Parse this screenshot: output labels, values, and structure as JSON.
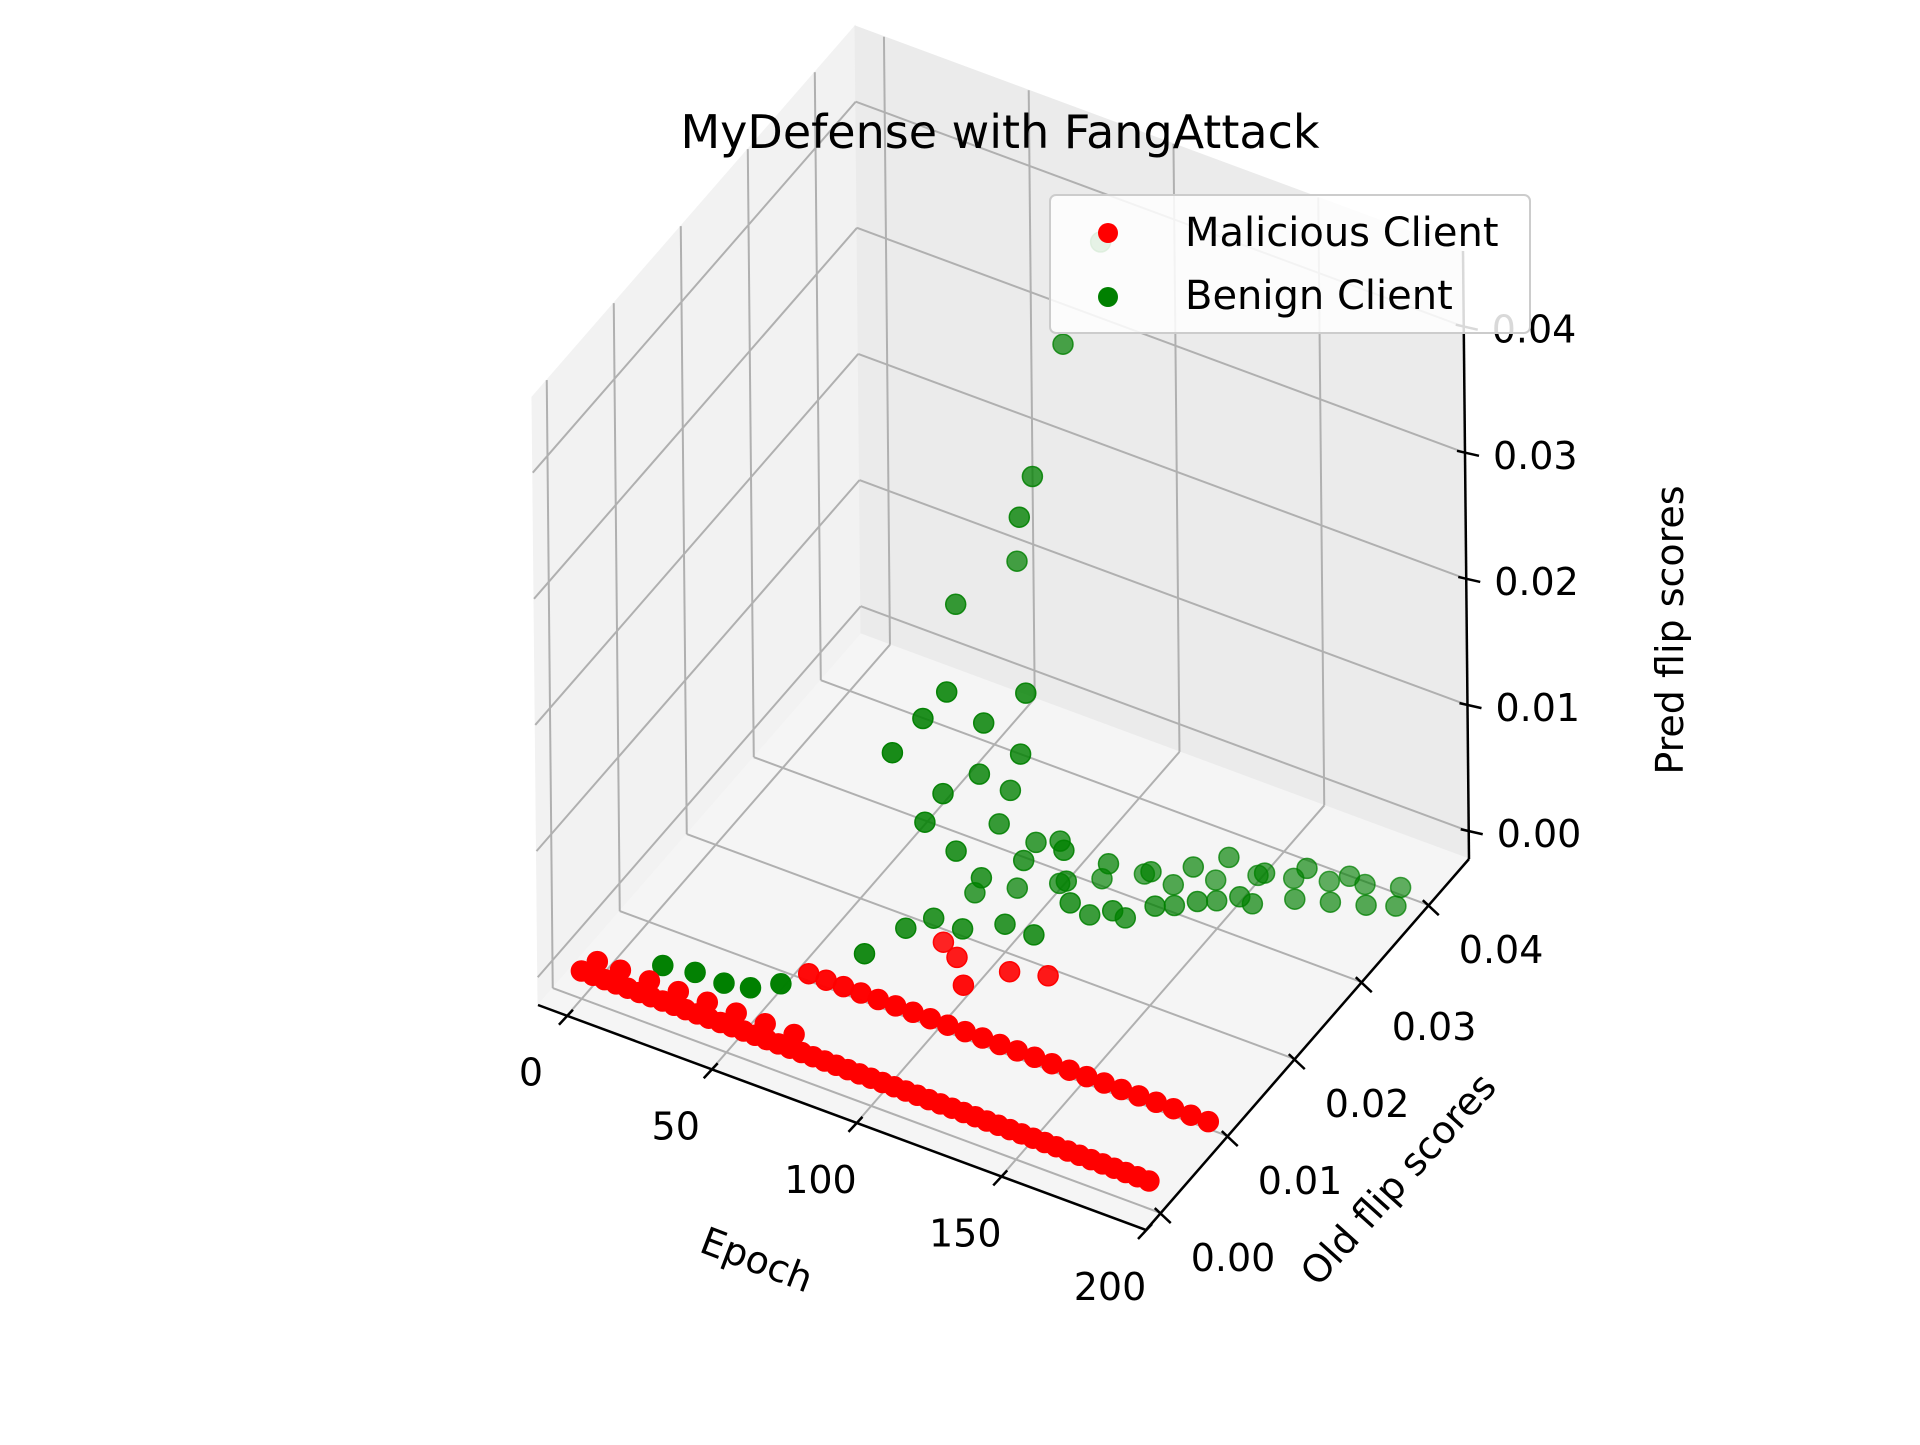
{
  "chart_data": {
    "type": "scatter3d",
    "title": "MyDefense with FangAttack",
    "axes": {
      "x": {
        "label": "Epoch",
        "ticks": [
          "0",
          "50",
          "100",
          "150",
          "200"
        ],
        "tick_values": [
          0,
          50,
          100,
          150,
          200
        ],
        "range": [
          -10,
          200
        ]
      },
      "y": {
        "label": "Old flip scores",
        "ticks": [
          "0.00",
          "0.01",
          "0.02",
          "0.03",
          "0.04"
        ],
        "tick_values": [
          0,
          0.01,
          0.02,
          0.03,
          0.04
        ],
        "range": [
          -0.0022,
          0.046
        ]
      },
      "z": {
        "label": "Pred flip scores",
        "ticks": [
          "0.00",
          "0.01",
          "0.02",
          "0.03",
          "0.04"
        ],
        "tick_values": [
          0,
          0.01,
          0.02,
          0.03,
          0.04
        ],
        "range": [
          -0.0022,
          0.046
        ]
      }
    },
    "grid": true,
    "legend": {
      "placement": "upper right",
      "entries": [
        {
          "label": "Malicious Client",
          "color": "#ff0000"
        },
        {
          "label": "Benign Client",
          "color": "#008000"
        }
      ]
    },
    "series": [
      {
        "name": "Malicious Client",
        "color": "#ff0000",
        "points": [
          [
            0,
            0,
            0
          ],
          [
            4,
            0,
            0
          ],
          [
            8,
            0,
            0
          ],
          [
            12,
            0,
            0
          ],
          [
            16,
            0,
            0
          ],
          [
            20,
            0,
            0
          ],
          [
            24,
            0,
            0
          ],
          [
            28,
            0,
            0
          ],
          [
            32,
            0,
            0
          ],
          [
            36,
            0,
            0
          ],
          [
            40,
            0,
            0
          ],
          [
            44,
            0,
            0
          ],
          [
            48,
            0,
            0
          ],
          [
            52,
            0,
            0
          ],
          [
            56,
            0,
            0
          ],
          [
            60,
            0,
            0
          ],
          [
            64,
            0,
            0
          ],
          [
            68,
            0,
            0
          ],
          [
            72,
            0,
            0
          ],
          [
            76,
            0,
            0
          ],
          [
            80,
            0,
            0
          ],
          [
            84,
            0,
            0
          ],
          [
            88,
            0,
            0
          ],
          [
            92,
            0,
            0
          ],
          [
            96,
            0,
            0
          ],
          [
            100,
            0,
            0
          ],
          [
            104,
            0,
            0
          ],
          [
            108,
            0,
            0
          ],
          [
            112,
            0,
            0
          ],
          [
            116,
            0,
            0
          ],
          [
            120,
            0,
            0
          ],
          [
            124,
            0,
            0
          ],
          [
            128,
            0,
            0
          ],
          [
            132,
            0,
            0
          ],
          [
            136,
            0,
            0
          ],
          [
            140,
            0,
            0
          ],
          [
            144,
            0,
            0
          ],
          [
            148,
            0,
            0
          ],
          [
            152,
            0,
            0
          ],
          [
            156,
            0,
            0
          ],
          [
            160,
            0,
            0
          ],
          [
            164,
            0,
            0
          ],
          [
            168,
            0,
            0
          ],
          [
            172,
            0,
            0
          ],
          [
            176,
            0,
            0
          ],
          [
            180,
            0,
            0
          ],
          [
            184,
            0,
            0
          ],
          [
            188,
            0,
            0
          ],
          [
            192,
            0,
            0
          ],
          [
            196,
            0,
            0
          ],
          [
            2,
            0.0015,
            0
          ],
          [
            10,
            0.0015,
            0
          ],
          [
            20,
            0.0015,
            0
          ],
          [
            30,
            0.0015,
            0
          ],
          [
            40,
            0.0015,
            0
          ],
          [
            50,
            0.0015,
            0
          ],
          [
            60,
            0.0015,
            0
          ],
          [
            70,
            0.0015,
            0
          ],
          [
            60,
            0.008,
            0
          ],
          [
            66,
            0.008,
            0
          ],
          [
            72,
            0.008,
            0
          ],
          [
            78,
            0.008,
            0
          ],
          [
            84,
            0.008,
            0
          ],
          [
            90,
            0.008,
            0
          ],
          [
            96,
            0.008,
            0
          ],
          [
            102,
            0.008,
            0
          ],
          [
            108,
            0.008,
            0
          ],
          [
            114,
            0.008,
            0
          ],
          [
            120,
            0.008,
            0
          ],
          [
            126,
            0.008,
            0
          ],
          [
            132,
            0.008,
            0
          ],
          [
            138,
            0.008,
            0
          ],
          [
            144,
            0.008,
            0
          ],
          [
            150,
            0.008,
            0
          ],
          [
            156,
            0.008,
            0
          ],
          [
            162,
            0.008,
            0
          ],
          [
            168,
            0.008,
            0
          ],
          [
            174,
            0.008,
            0
          ],
          [
            180,
            0.008,
            0
          ],
          [
            186,
            0.008,
            0
          ],
          [
            192,
            0.008,
            0
          ],
          [
            198,
            0.008,
            0
          ],
          [
            88,
            0.016,
            0
          ],
          [
            112,
            0.0155,
            0
          ],
          [
            123,
            0.0165,
            0
          ],
          [
            103,
            0.0125,
            0
          ],
          [
            95,
            0.015,
            0
          ]
        ]
      },
      {
        "name": "Benign Client",
        "color": "#008000",
        "points": [
          [
            20,
            0.0035,
            0
          ],
          [
            30,
            0.004,
            0
          ],
          [
            40,
            0.004,
            0
          ],
          [
            48,
            0.0045,
            0
          ],
          [
            55,
            0.006,
            0
          ],
          [
            70,
            0.012,
            0
          ],
          [
            75,
            0.016,
            0
          ],
          [
            80,
            0.018,
            0
          ],
          [
            85,
            0.022,
            0
          ],
          [
            90,
            0.018,
            0
          ],
          [
            95,
            0.024,
            0
          ],
          [
            100,
            0.02,
            0
          ],
          [
            105,
            0.026,
            0
          ],
          [
            110,
            0.02,
            0
          ],
          [
            115,
            0.028,
            0
          ],
          [
            120,
            0.024,
            0
          ],
          [
            125,
            0.03,
            0
          ],
          [
            130,
            0.025,
            0
          ],
          [
            135,
            0.03,
            0
          ],
          [
            140,
            0.028,
            0
          ],
          [
            145,
            0.032,
            0
          ],
          [
            150,
            0.03,
            0
          ],
          [
            155,
            0.034,
            0
          ],
          [
            160,
            0.031,
            0
          ],
          [
            165,
            0.035,
            0
          ],
          [
            170,
            0.033,
            0
          ],
          [
            175,
            0.036,
            0
          ],
          [
            180,
            0.034,
            0
          ],
          [
            185,
            0.037,
            0
          ],
          [
            190,
            0.035,
            0
          ],
          [
            195,
            0.038,
            0
          ],
          [
            198,
            0.036,
            0
          ],
          [
            92,
            0.02,
            0.003
          ],
          [
            102,
            0.022,
            0.004
          ],
          [
            112,
            0.024,
            0.002
          ],
          [
            122,
            0.026,
            0.003
          ],
          [
            132,
            0.028,
            0.002
          ],
          [
            142,
            0.03,
            0.002
          ],
          [
            152,
            0.031,
            0.003
          ],
          [
            162,
            0.032,
            0.002
          ],
          [
            172,
            0.034,
            0.002
          ],
          [
            182,
            0.036,
            0.001
          ],
          [
            88,
            0.018,
            0.006
          ],
          [
            96,
            0.021,
            0.007
          ],
          [
            104,
            0.023,
            0.005
          ],
          [
            110,
            0.024,
            0.005
          ],
          [
            116,
            0.022,
            0.006
          ],
          [
            82,
            0.016,
            0.009
          ],
          [
            86,
            0.017,
            0.011
          ],
          [
            94,
            0.019,
            0.012
          ],
          [
            100,
            0.021,
            0.01
          ],
          [
            106,
            0.02,
            0.014
          ],
          [
            78,
            0.013,
            0.016
          ],
          [
            84,
            0.015,
            0.018
          ],
          [
            90,
            0.016,
            0.02
          ],
          [
            98,
            0.018,
            0.017
          ],
          [
            108,
            0.02,
            0.019
          ],
          [
            118,
            0.022,
            0.002
          ],
          [
            128,
            0.024,
            0.001
          ],
          [
            138,
            0.026,
            0.001
          ],
          [
            148,
            0.028,
            0.001
          ],
          [
            158,
            0.03,
            0.001
          ],
          [
            84,
            0.02,
            0.024
          ],
          [
            96,
            0.024,
            0.026
          ],
          [
            104,
            0.021,
            0.032
          ],
          [
            104,
            0.023,
            0.034
          ],
          [
            108,
            0.026,
            0.043
          ],
          [
            112,
            0.03,
            0.049
          ]
        ]
      }
    ]
  }
}
